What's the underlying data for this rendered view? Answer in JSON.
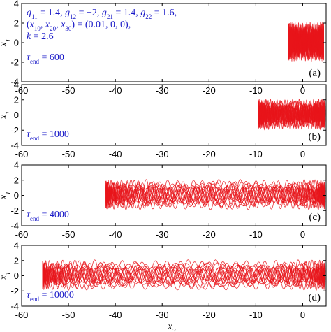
{
  "figure": {
    "xlabel_main": "x",
    "xlabel_sub": "3"
  },
  "chart_data": [
    {
      "type": "line",
      "panel_label": "(a)",
      "ylabel_main": "x",
      "ylabel_sub": "1",
      "xlim": [
        -60,
        5
      ],
      "ylim": [
        -4,
        4
      ],
      "xticks": [
        "-60",
        "-50",
        "-40",
        "-30",
        "-20",
        "-10",
        "0"
      ],
      "yticks": [
        "4",
        "2",
        "0",
        "-2",
        "-4"
      ],
      "trajectory_x_range": [
        -3,
        4.5
      ],
      "trajectory_y_range": [
        -2,
        2.2
      ],
      "line_color": "#e8141a",
      "annotation_lines": [
        [
          [
            "g",
            "11"
          ],
          [
            " = 1.4, ",
            ""
          ],
          [
            "g",
            "12"
          ],
          [
            " = −2, ",
            ""
          ],
          [
            "g",
            "21"
          ],
          [
            " = 1.4, ",
            ""
          ],
          [
            "g",
            "22"
          ],
          [
            " = 1.6,",
            ""
          ]
        ],
        [
          [
            "(",
            ""
          ],
          [
            "x",
            "10"
          ],
          [
            ", ",
            ""
          ],
          [
            "x",
            "20"
          ],
          [
            ", ",
            ""
          ],
          [
            "x",
            "30"
          ],
          [
            ") = (0.01, 0, 0),",
            ""
          ]
        ],
        [
          [
            "k",
            ""
          ],
          [
            " = 2.6",
            ""
          ]
        ]
      ],
      "tau_symbol": "τ",
      "tau_sub": "end",
      "tau_value": " = 600"
    },
    {
      "type": "line",
      "panel_label": "(b)",
      "ylabel_main": "x",
      "ylabel_sub": "1",
      "xlim": [
        -60,
        5
      ],
      "ylim": [
        -4,
        4
      ],
      "xticks": [
        "-60",
        "-50",
        "-40",
        "-30",
        "-20",
        "-10",
        "0"
      ],
      "yticks": [
        "4",
        "2",
        "0",
        "-2",
        "-4"
      ],
      "trajectory_x_range": [
        -9.5,
        4.8
      ],
      "trajectory_y_range": [
        -2,
        2.2
      ],
      "line_color": "#e8141a",
      "tau_symbol": "τ",
      "tau_sub": "end",
      "tau_value": " = 1000"
    },
    {
      "type": "line",
      "panel_label": "(c)",
      "ylabel_main": "x",
      "ylabel_sub": "1",
      "xlim": [
        -60,
        5
      ],
      "ylim": [
        -4,
        4
      ],
      "xticks": [
        "-60",
        "-50",
        "-40",
        "-30",
        "-20",
        "-10",
        "0"
      ],
      "yticks": [
        "4",
        "2",
        "0",
        "-2",
        "-4"
      ],
      "trajectory_x_range": [
        -42,
        4.8
      ],
      "trajectory_y_range": [
        -2,
        2.2
      ],
      "line_color": "#e8141a",
      "tau_symbol": "τ",
      "tau_sub": "end",
      "tau_value": " = 4000"
    },
    {
      "type": "line",
      "panel_label": "(d)",
      "ylabel_main": "x",
      "ylabel_sub": "1",
      "xlim": [
        -60,
        5
      ],
      "ylim": [
        -4,
        4
      ],
      "xticks": [
        "-60",
        "-50",
        "-40",
        "-30",
        "-20",
        "-10",
        "0"
      ],
      "yticks": [
        "4",
        "2",
        "0",
        "-2",
        "-4"
      ],
      "trajectory_x_range": [
        -55.5,
        4.8
      ],
      "trajectory_y_range": [
        -2,
        2.2
      ],
      "line_color": "#e8141a",
      "tau_symbol": "τ",
      "tau_sub": "end",
      "tau_value": " = 10000"
    }
  ]
}
